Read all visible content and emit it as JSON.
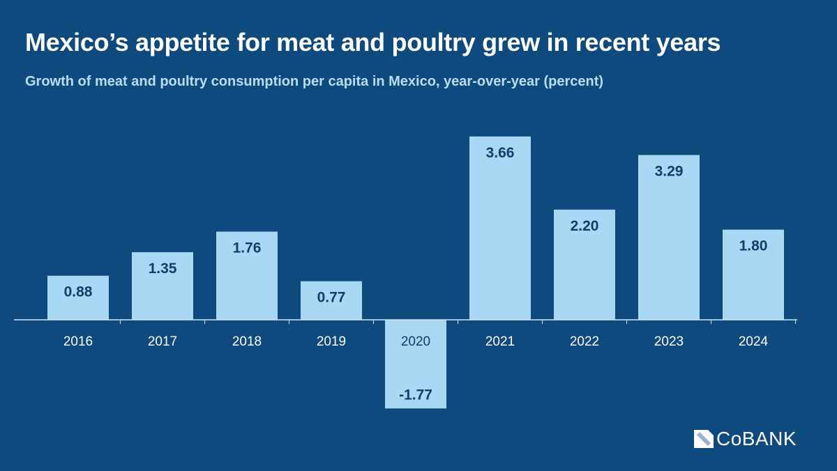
{
  "title": "Mexico’s appetite for meat and poultry grew in recent years",
  "subtitle": "Growth of meat and poultry consumption per capita in Mexico, year-over-year (percent)",
  "brand": "CoBANK",
  "colors": {
    "background": "#0e4a7d",
    "bar": "#a9d8f5",
    "label": "#0d3f6b",
    "tick_label": "#ffffff"
  },
  "chart_data": {
    "type": "bar",
    "title": "Mexico’s appetite for meat and poultry grew in recent years",
    "subtitle": "Growth of meat and poultry consumption per capita in Mexico, year-over-year (percent)",
    "categories": [
      "2016",
      "2017",
      "2018",
      "2019",
      "2020",
      "2021",
      "2022",
      "2023",
      "2024"
    ],
    "values": [
      0.88,
      1.35,
      1.76,
      0.77,
      -1.77,
      3.66,
      2.2,
      3.29,
      1.8
    ],
    "data_labels": [
      "0.88",
      "1.35",
      "1.76",
      "0.77",
      "-1.77",
      "3.66",
      "2.20",
      "3.29",
      "1.80"
    ],
    "xlabel": "",
    "ylabel": "",
    "grid": false,
    "legend": "none"
  }
}
